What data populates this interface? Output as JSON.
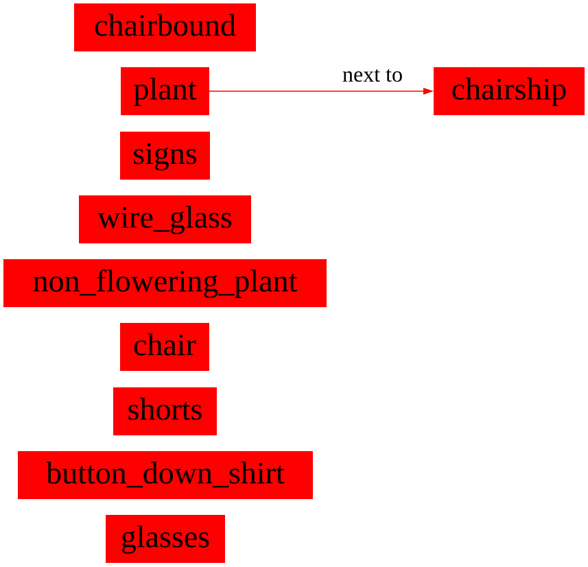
{
  "diagram": {
    "node_color": "#ff0000",
    "edge_color": "#ff0000",
    "text_color": "#000000",
    "nodes": [
      {
        "id": "chairbound",
        "label": "chairbound"
      },
      {
        "id": "plant",
        "label": "plant"
      },
      {
        "id": "chairship",
        "label": "chairship"
      },
      {
        "id": "signs",
        "label": "signs"
      },
      {
        "id": "wire_glass",
        "label": "wire_glass"
      },
      {
        "id": "non_flowering_plant",
        "label": "non_flowering_plant"
      },
      {
        "id": "chair",
        "label": "chair"
      },
      {
        "id": "shorts",
        "label": "shorts"
      },
      {
        "id": "button_down_shirt",
        "label": "button_down_shirt"
      },
      {
        "id": "glasses",
        "label": "glasses"
      }
    ],
    "edges": [
      {
        "from": "plant",
        "to": "chairship",
        "label": "next to"
      }
    ]
  }
}
